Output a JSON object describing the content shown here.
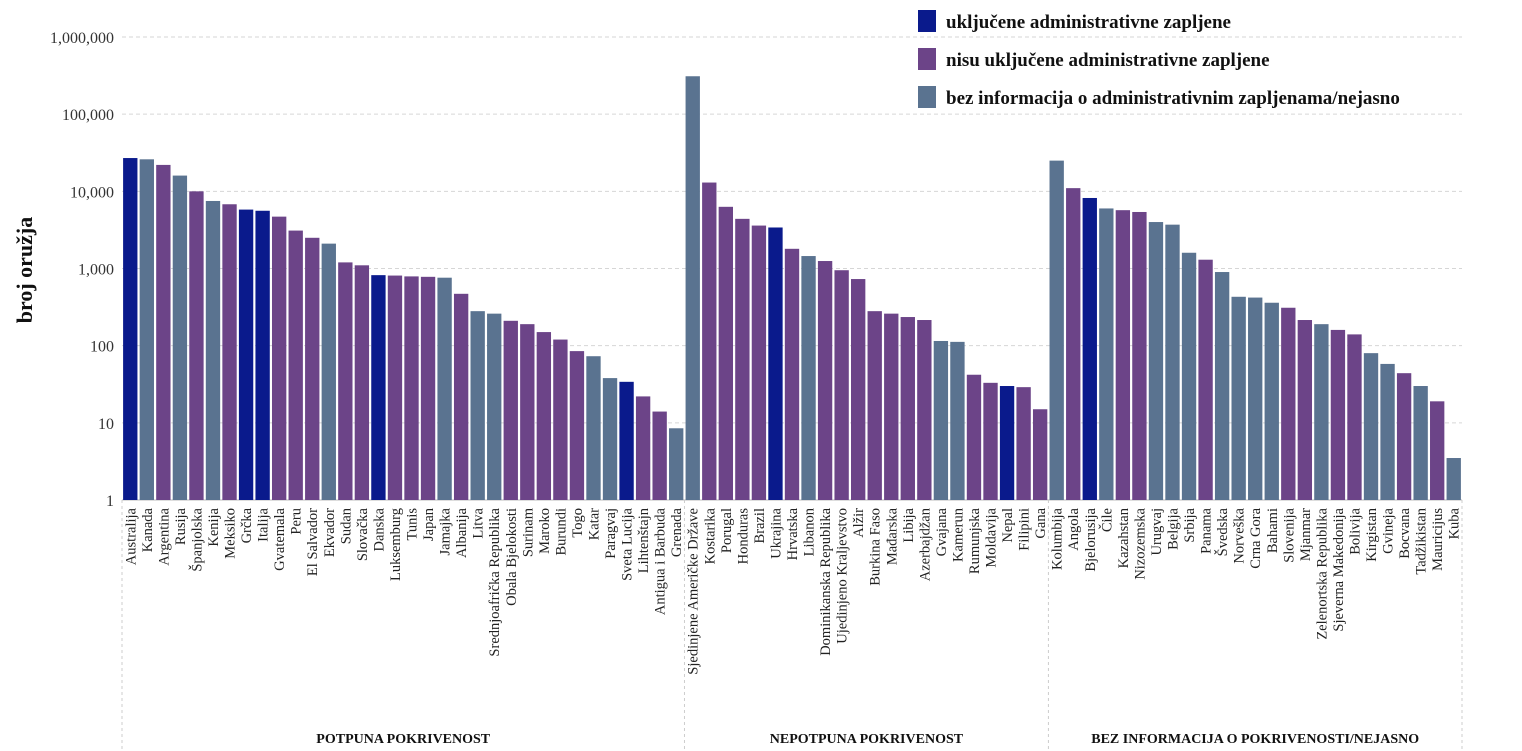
{
  "chart_data": {
    "type": "bar",
    "ylabel": "broj oružja",
    "yscale": "log",
    "ylim": [
      1,
      1000000
    ],
    "yticks": [
      {
        "value": 1,
        "label": "1"
      },
      {
        "value": 10,
        "label": "10"
      },
      {
        "value": 100,
        "label": "100"
      },
      {
        "value": 1000,
        "label": "1,000"
      },
      {
        "value": 10000,
        "label": "10,000"
      },
      {
        "value": 100000,
        "label": "100,000"
      },
      {
        "value": 1000000,
        "label": "1,000,000"
      }
    ],
    "grid": true,
    "legend_position": "top-right",
    "series_types": [
      {
        "key": "inc",
        "name": "uključene administrativne zapljene",
        "color": "#0a1a8c"
      },
      {
        "key": "not",
        "name": "nisu uključene administrativne zapljene",
        "color": "#6c4488"
      },
      {
        "key": "unk",
        "name": "bez informacija o administrativnim zapljenama/nejasno",
        "color": "#5a7390"
      }
    ],
    "groups": [
      {
        "label": "POTPUNA POKRIVENOST",
        "bars": [
          {
            "name": "Australija",
            "value": 27000,
            "type": "inc"
          },
          {
            "name": "Kanada",
            "value": 26000,
            "type": "unk"
          },
          {
            "name": "Argentina",
            "value": 22000,
            "type": "not"
          },
          {
            "name": "Rusija",
            "value": 16000,
            "type": "unk"
          },
          {
            "name": "Španjolska",
            "value": 10000,
            "type": "not"
          },
          {
            "name": "Kenija",
            "value": 7500,
            "type": "unk"
          },
          {
            "name": "Meksiko",
            "value": 6800,
            "type": "not"
          },
          {
            "name": "Grčka",
            "value": 5800,
            "type": "inc"
          },
          {
            "name": "Italija",
            "value": 5600,
            "type": "inc"
          },
          {
            "name": "Gvatemala",
            "value": 4700,
            "type": "not"
          },
          {
            "name": "Peru",
            "value": 3100,
            "type": "not"
          },
          {
            "name": "El Salvador",
            "value": 2500,
            "type": "not"
          },
          {
            "name": "Ekvador",
            "value": 2100,
            "type": "unk"
          },
          {
            "name": "Sudan",
            "value": 1200,
            "type": "not"
          },
          {
            "name": "Slovačka",
            "value": 1100,
            "type": "not"
          },
          {
            "name": "Danska",
            "value": 820,
            "type": "inc"
          },
          {
            "name": "Luksemburg",
            "value": 810,
            "type": "not"
          },
          {
            "name": "Tunis",
            "value": 790,
            "type": "not"
          },
          {
            "name": "Japan",
            "value": 780,
            "type": "not"
          },
          {
            "name": "Jamajka",
            "value": 760,
            "type": "unk"
          },
          {
            "name": "Albanija",
            "value": 470,
            "type": "not"
          },
          {
            "name": "Litva",
            "value": 280,
            "type": "unk"
          },
          {
            "name": "Srednjoafrička Republika",
            "value": 260,
            "type": "unk"
          },
          {
            "name": "Obala Bjelokosti",
            "value": 210,
            "type": "not"
          },
          {
            "name": "Surinam",
            "value": 190,
            "type": "not"
          },
          {
            "name": "Maroko",
            "value": 150,
            "type": "not"
          },
          {
            "name": "Burundi",
            "value": 120,
            "type": "not"
          },
          {
            "name": "Togo",
            "value": 85,
            "type": "not"
          },
          {
            "name": "Katar",
            "value": 73,
            "type": "unk"
          },
          {
            "name": "Paragvaj",
            "value": 38,
            "type": "unk"
          },
          {
            "name": "Sveta Lucija",
            "value": 34,
            "type": "inc"
          },
          {
            "name": "Lihtenštajn",
            "value": 22,
            "type": "not"
          },
          {
            "name": "Antigua i Barbuda",
            "value": 14,
            "type": "not"
          },
          {
            "name": "Grenada",
            "value": 8.5,
            "type": "unk"
          }
        ]
      },
      {
        "label": "NEPOTPUNA POKRIVENOST",
        "bars": [
          {
            "name": "Sjedinjene Američke Države",
            "value": 310000,
            "type": "unk"
          },
          {
            "name": "Kostarika",
            "value": 13000,
            "type": "not"
          },
          {
            "name": "Porugal",
            "value": 6300,
            "type": "not"
          },
          {
            "name": "Honduras",
            "value": 4400,
            "type": "not"
          },
          {
            "name": "Brazil",
            "value": 3600,
            "type": "not"
          },
          {
            "name": "Ukrajina",
            "value": 3400,
            "type": "inc"
          },
          {
            "name": "Hrvatska",
            "value": 1800,
            "type": "not"
          },
          {
            "name": "Libanon",
            "value": 1450,
            "type": "unk"
          },
          {
            "name": "Dominikanska Republika",
            "value": 1250,
            "type": "not"
          },
          {
            "name": "Ujedinjeno Kraljevstvo",
            "value": 950,
            "type": "not"
          },
          {
            "name": "Alžir",
            "value": 730,
            "type": "not"
          },
          {
            "name": "Burkina Faso",
            "value": 280,
            "type": "not"
          },
          {
            "name": "Mađarska",
            "value": 260,
            "type": "not"
          },
          {
            "name": "Libija",
            "value": 235,
            "type": "not"
          },
          {
            "name": "Azerbajdžan",
            "value": 215,
            "type": "not"
          },
          {
            "name": "Gvajana",
            "value": 115,
            "type": "unk"
          },
          {
            "name": "Kamerun",
            "value": 112,
            "type": "unk"
          },
          {
            "name": "Rumunjska",
            "value": 42,
            "type": "not"
          },
          {
            "name": "Moldavija",
            "value": 33,
            "type": "not"
          },
          {
            "name": "Nepal",
            "value": 30,
            "type": "inc"
          },
          {
            "name": "Filipini",
            "value": 29,
            "type": "not"
          },
          {
            "name": "Gana",
            "value": 15,
            "type": "not"
          }
        ]
      },
      {
        "label": "BEZ INFORMACIJA O POKRIVENOSTI/NEJASNO",
        "bars": [
          {
            "name": "Kolumbija",
            "value": 25000,
            "type": "unk"
          },
          {
            "name": "Angola",
            "value": 11000,
            "type": "not"
          },
          {
            "name": "Bjelorusija",
            "value": 8200,
            "type": "inc"
          },
          {
            "name": "Čile",
            "value": 6000,
            "type": "unk"
          },
          {
            "name": "Kazahstan",
            "value": 5700,
            "type": "not"
          },
          {
            "name": "Nizozemska",
            "value": 5400,
            "type": "not"
          },
          {
            "name": "Urugvaj",
            "value": 4000,
            "type": "unk"
          },
          {
            "name": "Belgija",
            "value": 3700,
            "type": "unk"
          },
          {
            "name": "Srbija",
            "value": 1600,
            "type": "unk"
          },
          {
            "name": "Panama",
            "value": 1300,
            "type": "not"
          },
          {
            "name": "Švedska",
            "value": 900,
            "type": "unk"
          },
          {
            "name": "Norveška",
            "value": 430,
            "type": "unk"
          },
          {
            "name": "Crna Gora",
            "value": 420,
            "type": "unk"
          },
          {
            "name": "Bahami",
            "value": 360,
            "type": "unk"
          },
          {
            "name": "Slovenija",
            "value": 310,
            "type": "not"
          },
          {
            "name": "Mjanmar",
            "value": 215,
            "type": "not"
          },
          {
            "name": "Zelenortska Republika",
            "value": 190,
            "type": "unk"
          },
          {
            "name": "Sjeverna Makedonija",
            "value": 160,
            "type": "not"
          },
          {
            "name": "Bolivija",
            "value": 140,
            "type": "not"
          },
          {
            "name": "Kirgistan",
            "value": 80,
            "type": "unk"
          },
          {
            "name": "Gvineja",
            "value": 58,
            "type": "unk"
          },
          {
            "name": "Bocvana",
            "value": 44,
            "type": "not"
          },
          {
            "name": "Tadžikistan",
            "value": 30,
            "type": "unk"
          },
          {
            "name": "Mauricijus",
            "value": 19,
            "type": "not"
          },
          {
            "name": "Kuba",
            "value": 3.5,
            "type": "unk"
          }
        ]
      }
    ]
  }
}
